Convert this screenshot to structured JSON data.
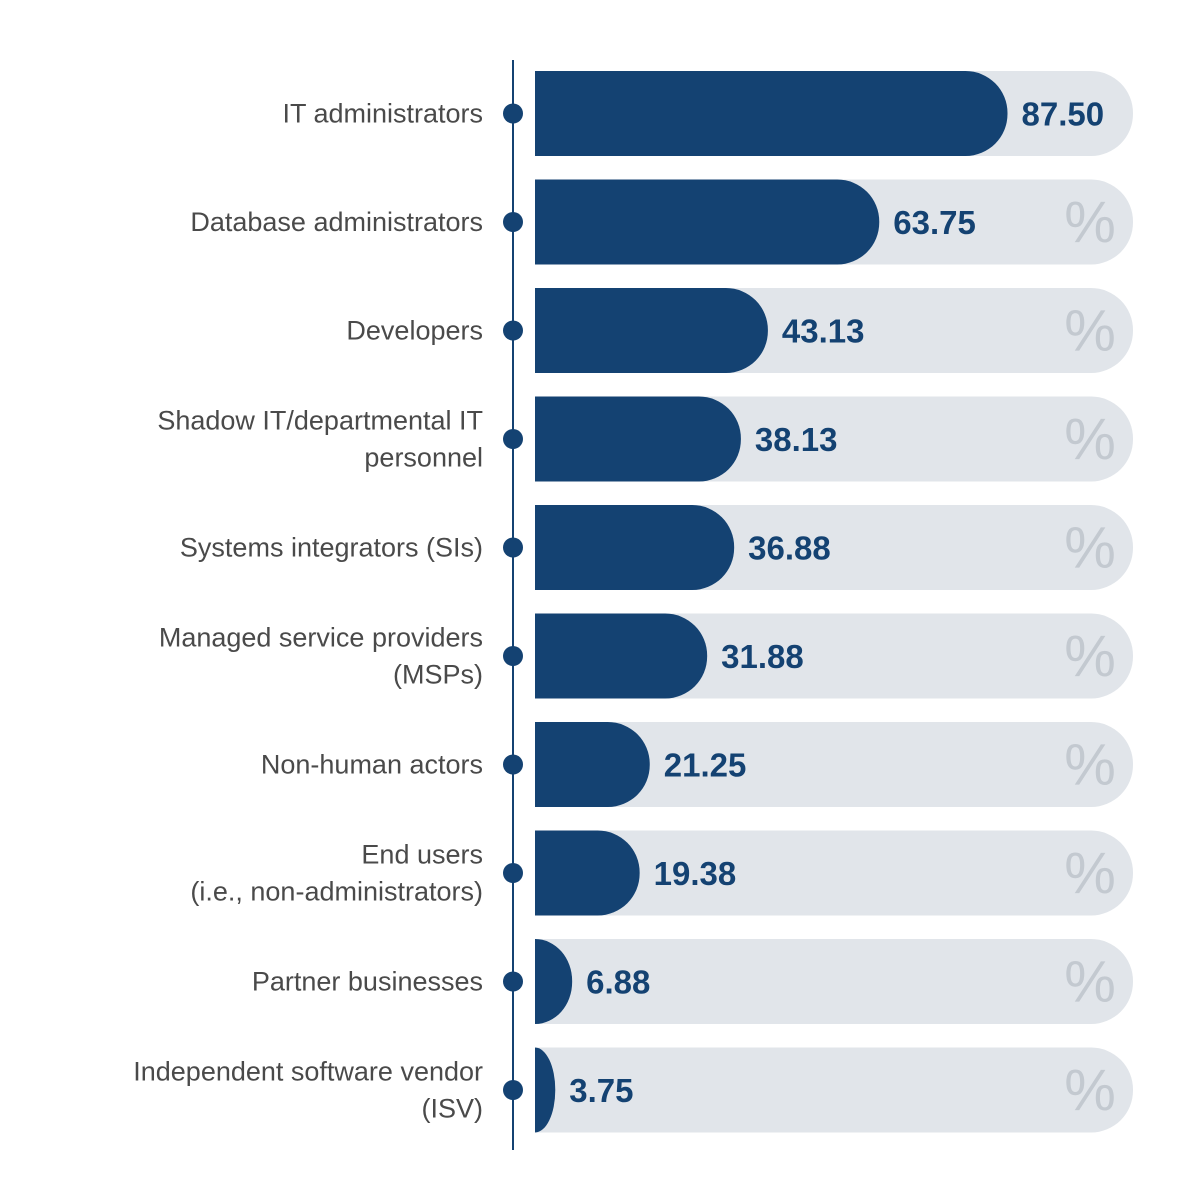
{
  "chart_data": {
    "type": "bar",
    "orientation": "horizontal",
    "categories": [
      [
        "IT administrators"
      ],
      [
        "Database administrators"
      ],
      [
        "Developers"
      ],
      [
        "Shadow IT/departmental IT",
        "personnel"
      ],
      [
        "Systems integrators (SIs)"
      ],
      [
        "Managed service providers",
        "(MSPs)"
      ],
      [
        "Non-human actors"
      ],
      [
        "End users",
        "(i.e., non-administrators)"
      ],
      [
        "Partner businesses"
      ],
      [
        "Independent software vendor",
        "(ISV)"
      ]
    ],
    "values": [
      87.5,
      63.75,
      43.13,
      38.13,
      36.88,
      31.88,
      21.25,
      19.38,
      6.88,
      3.75
    ],
    "value_labels": [
      "87.50",
      "63.75",
      "43.13",
      "38.13",
      "36.88",
      "31.88",
      "21.25",
      "19.38",
      "6.88",
      "3.75"
    ],
    "unit_symbol": "%",
    "xlim": [
      0,
      100
    ],
    "grid": false,
    "colors": {
      "bar": "#144272",
      "track": "#e1e5ea",
      "axis": "#144272",
      "label": "#4a4a4a",
      "value": "#144272",
      "unit": "#c3c9d0"
    }
  }
}
